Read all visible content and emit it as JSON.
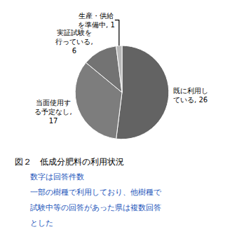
{
  "chart_data": {
    "type": "pie",
    "title": "図２　低成分肥料の利用状況",
    "labels": [
      "既に利用し\nている, 26",
      "当面使用す\nる予定なし,\n17",
      "実証試験を\n行っている,\n6",
      "生産・供給\nを準備中, 1"
    ],
    "values": [
      26,
      17,
      6,
      1
    ],
    "colors": [
      "#636363",
      "#7d7d7d",
      "#737373",
      "#b8b8b8"
    ],
    "annotations": [
      {
        "text": "　　数字は回答件数",
        "color": "#2255bb"
      },
      {
        "text": "　　一部の樹種で利用しており、他樹種で",
        "color": "#2255bb"
      },
      {
        "text": "　　試験中等の回答があった県は複数回答",
        "color": "#2255bb"
      },
      {
        "text": "　　とした",
        "color": "#2255bb"
      }
    ]
  }
}
